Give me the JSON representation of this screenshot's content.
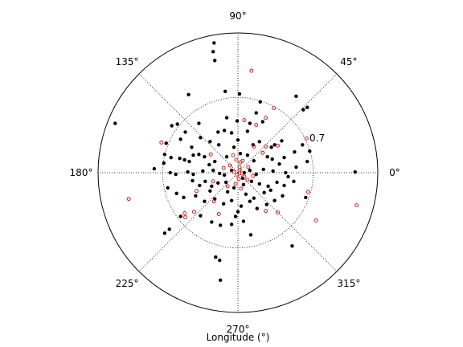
{
  "chart_data": {
    "type": "scatter",
    "projection": "polar",
    "xlabel": "Longitude (°)",
    "angular_tick_labels": [
      "0°",
      "45°",
      "90°",
      "135°",
      "180°",
      "225°",
      "270°",
      "315°"
    ],
    "angular_ticks_deg": [
      0,
      45,
      90,
      135,
      180,
      225,
      270,
      315
    ],
    "radial_ticks": [
      0.7
    ],
    "radial_tick_labels": [
      "0.7"
    ],
    "rlim": [
      0,
      1.3
    ],
    "radial_label_angle_deg": 22.5,
    "grid": true,
    "series": [
      {
        "marker": "filled-dot",
        "color": "#000000",
        "points": [
          [
            -0.222,
            1.207
          ],
          [
            -0.23,
            1.126
          ],
          [
            -0.215,
            1.044
          ],
          [
            -0.118,
            0.756
          ],
          [
            0.015,
            0.733
          ],
          [
            -0.459,
            0.726
          ],
          [
            -0.489,
            0.378
          ],
          [
            -1.141,
            0.459
          ],
          [
            0.607,
            0.585
          ],
          [
            0.644,
            0.607
          ],
          [
            0.207,
            0.659
          ],
          [
            0.17,
            0.556
          ],
          [
            -0.563,
            0.452
          ],
          [
            -0.615,
            0.437
          ],
          [
            -0.363,
            0.459
          ],
          [
            -0.104,
            0.511
          ],
          [
            -0.007,
            0.481
          ],
          [
            0.111,
            0.459
          ],
          [
            0.23,
            0.474
          ],
          [
            -0.348,
            0.326
          ],
          [
            -0.259,
            0.289
          ],
          [
            -0.185,
            0.378
          ],
          [
            -0.126,
            0.393
          ],
          [
            -0.059,
            0.37
          ],
          [
            0.089,
            0.385
          ],
          [
            -0.533,
            0.311
          ],
          [
            -0.43,
            0.237
          ],
          [
            0.407,
            0.296
          ],
          [
            0.341,
            0.259
          ],
          [
            0.311,
            0.237
          ],
          [
            0.2,
            0.289
          ],
          [
            -0.667,
            0.274
          ],
          [
            -0.681,
            0.17
          ],
          [
            -0.622,
            0.141
          ],
          [
            -0.689,
            0.089
          ],
          [
            -0.541,
            0.133
          ],
          [
            -0.496,
            0.119
          ],
          [
            -0.415,
            0.163
          ],
          [
            -0.363,
            0.17
          ],
          [
            -0.311,
            0.148
          ],
          [
            -0.267,
            0.074
          ],
          [
            -0.215,
            0.104
          ],
          [
            -0.104,
            0.148
          ],
          [
            0.022,
            0.178
          ],
          [
            0.089,
            0.163
          ],
          [
            0.148,
            0.111
          ],
          [
            0.274,
            0.148
          ],
          [
            0.319,
            0.126
          ],
          [
            0.385,
            0.081
          ],
          [
            0.43,
            0.141
          ],
          [
            0.526,
            0.193
          ],
          [
            0.6,
            0.259
          ],
          [
            0.667,
            0.2
          ],
          [
            0.644,
            0.104
          ],
          [
            0.541,
            0.052
          ],
          [
            -0.778,
            0.037
          ],
          [
            -0.63,
            0.0
          ],
          [
            -0.578,
            -0.015
          ],
          [
            -0.467,
            0.007
          ],
          [
            -0.415,
            -0.015
          ],
          [
            -0.326,
            0.015
          ],
          [
            -0.23,
            0.022
          ],
          [
            -0.17,
            -0.007
          ],
          [
            -0.126,
            -0.022
          ],
          [
            -0.059,
            0.022
          ],
          [
            0.059,
            0.0
          ],
          [
            0.111,
            0.022
          ],
          [
            0.17,
            -0.015
          ],
          [
            0.237,
            0.03
          ],
          [
            0.326,
            0.015
          ],
          [
            0.444,
            0.0
          ],
          [
            -0.422,
            -0.074
          ],
          [
            -0.356,
            -0.119
          ],
          [
            -0.304,
            -0.081
          ],
          [
            -0.244,
            -0.126
          ],
          [
            -0.185,
            -0.096
          ],
          [
            -0.111,
            -0.089
          ],
          [
            -0.037,
            -0.141
          ],
          [
            0.052,
            -0.111
          ],
          [
            0.126,
            -0.081
          ],
          [
            0.2,
            -0.104
          ],
          [
            0.281,
            -0.126
          ],
          [
            0.363,
            -0.089
          ],
          [
            0.43,
            -0.119
          ],
          [
            0.519,
            -0.081
          ],
          [
            -0.652,
            -0.141
          ],
          [
            -0.57,
            -0.193
          ],
          [
            -0.504,
            -0.23
          ],
          [
            -0.393,
            -0.215
          ],
          [
            -0.311,
            -0.267
          ],
          [
            -0.215,
            -0.244
          ],
          [
            -0.133,
            -0.289
          ],
          [
            -0.059,
            -0.259
          ],
          [
            0.03,
            -0.311
          ],
          [
            0.111,
            -0.267
          ],
          [
            0.178,
            -0.333
          ],
          [
            0.267,
            -0.296
          ],
          [
            0.341,
            -0.259
          ],
          [
            0.415,
            -0.215
          ],
          [
            -0.533,
            -0.407
          ],
          [
            -0.348,
            -0.4
          ],
          [
            -0.244,
            -0.459
          ],
          [
            -0.059,
            -0.481
          ],
          [
            0.052,
            -0.452
          ],
          [
            -0.681,
            -0.563
          ],
          [
            -0.637,
            -0.526
          ],
          [
            -0.207,
            -0.785
          ],
          [
            -0.17,
            -0.815
          ],
          [
            0.119,
            -0.578
          ],
          [
            0.504,
            -0.681
          ],
          [
            -0.163,
            -1.0
          ],
          [
            1.089,
            0.007
          ],
          [
            0.63,
            -0.23
          ],
          [
            -0.163,
            -0.489
          ],
          [
            0.0,
            -0.363
          ],
          [
            -0.022,
            -0.407
          ],
          [
            0.074,
            -0.2
          ],
          [
            -0.096,
            -0.178
          ],
          [
            0.148,
            -0.237
          ],
          [
            0.244,
            -0.185
          ],
          [
            -0.259,
            -0.17
          ],
          [
            0.304,
            -0.163
          ],
          [
            -0.178,
            0.259
          ],
          [
            0.141,
            0.259
          ],
          [
            -0.452,
            0.104
          ],
          [
            0.467,
            -0.037
          ],
          [
            0.0,
            0.304
          ],
          [
            -0.037,
            0.237
          ],
          [
            0.044,
            -0.052
          ],
          [
            0.541,
            0.711
          ]
        ]
      },
      {
        "marker": "open-circle",
        "color": "#dd0000",
        "points": [
          [
            0.126,
            0.948
          ],
          [
            0.333,
            0.6
          ],
          [
            0.259,
            0.511
          ],
          [
            0.059,
            0.489
          ],
          [
            0.17,
            0.444
          ],
          [
            -0.711,
            0.281
          ],
          [
            0.637,
            0.319
          ],
          [
            0.148,
            0.244
          ],
          [
            0.259,
            0.244
          ],
          [
            0.37,
            0.252
          ],
          [
            -0.252,
            0.17
          ],
          [
            0.23,
            0.185
          ],
          [
            -0.044,
            0.163
          ],
          [
            -0.015,
            0.119
          ],
          [
            0.044,
            0.111
          ],
          [
            -0.074,
            0.067
          ],
          [
            0.015,
            0.052
          ],
          [
            0.096,
            0.052
          ],
          [
            0.015,
            0.022
          ],
          [
            -0.037,
            0.007
          ],
          [
            0.037,
            -0.007
          ],
          [
            -0.007,
            -0.022
          ],
          [
            0.059,
            -0.037
          ],
          [
            0.007,
            -0.059
          ],
          [
            0.089,
            -0.067
          ],
          [
            -0.022,
            -0.104
          ],
          [
            0.03,
            -0.148
          ],
          [
            -0.096,
            -0.126
          ],
          [
            -0.23,
            -0.081
          ],
          [
            -0.385,
            -0.17
          ],
          [
            -0.222,
            -0.267
          ],
          [
            -0.178,
            -0.385
          ],
          [
            0.259,
            -0.356
          ],
          [
            0.37,
            -0.37
          ],
          [
            -0.407,
            -0.363
          ],
          [
            -0.496,
            -0.378
          ],
          [
            -0.489,
            -0.415
          ],
          [
            -1.015,
            -0.244
          ],
          [
            0.652,
            -0.178
          ],
          [
            0.726,
            -0.444
          ],
          [
            1.104,
            -0.304
          ],
          [
            0.141,
            -0.03
          ],
          [
            -0.133,
            0.044
          ],
          [
            0.022,
            0.096
          ]
        ]
      }
    ]
  }
}
